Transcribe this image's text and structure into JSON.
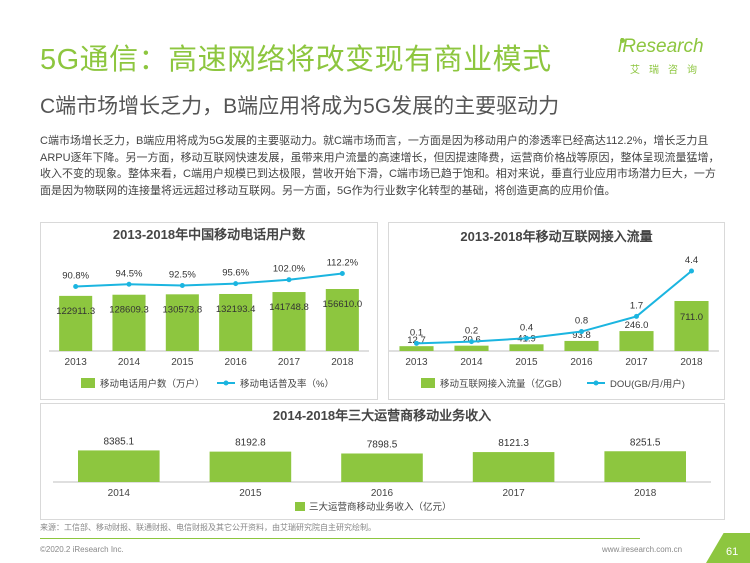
{
  "header": {
    "title": "5G通信：高速网络将改变现有商业模式",
    "subtitle": "C端市场增长乏力，B端应用将成为5G发展的主要驱动力"
  },
  "logo": {
    "word": "iResearch",
    "cn": "艾瑞咨询"
  },
  "body_text": "C端市场增长乏力，B端应用将成为5G发展的主要驱动力。就C端市场而言，一方面是因为移动用户的渗透率已经高达112.2%，增长乏力且ARPU逐年下降。另一方面，移动互联网快速发展，虽带来用户流量的高速增长，但因提速降费，运营商价格战等原因，整体呈现流量猛增，收入不变的现象。整体来看，C端用户规模已到达极限，营收开始下滑，C端市场已趋于饱和。相对来说，垂直行业应用市场潜力巨大，一方面是因为物联网的连接量将远远超过移动互联网。另一方面，5G作为行业数字化转型的基础，将创造更高的应用价值。",
  "colors": {
    "green": "#8dc63f",
    "blue": "#1bb5e0",
    "gray_text": "#555555"
  },
  "chart_data": [
    {
      "type": "bar",
      "title": "2013-2018年中国移动电话用户数",
      "categories": [
        "2013",
        "2014",
        "2015",
        "2016",
        "2017",
        "2018"
      ],
      "series": [
        {
          "name": "移动电话用户数（万户）",
          "type": "bar",
          "values": [
            122911.3,
            128609.3,
            130573.8,
            132193.4,
            141748.8,
            156610.0
          ],
          "labels": [
            "122911.3",
            "128609.3",
            "130573.8",
            "132193.4",
            "141748.8",
            "156610.0"
          ]
        },
        {
          "name": "移动电话普及率（%）",
          "type": "line",
          "values": [
            90.8,
            94.5,
            92.5,
            95.6,
            102.0,
            112.2
          ],
          "labels": [
            "90.8%",
            "94.5%",
            "92.5%",
            "95.6%",
            "102.0%",
            "112.2%"
          ]
        }
      ]
    },
    {
      "type": "bar",
      "title": "2013-2018年移动互联网接入流量",
      "categories": [
        "2013",
        "2014",
        "2015",
        "2016",
        "2017",
        "2018"
      ],
      "series": [
        {
          "name": "移动互联网接入流量（亿GB）",
          "type": "bar",
          "values": [
            12.7,
            20.6,
            41.9,
            93.8,
            246.0,
            711.0
          ],
          "labels": [
            "12.7",
            "20.6",
            "41.9",
            "93.8",
            "246.0",
            "711.0"
          ]
        },
        {
          "name": "DOU(GB/月/用户)",
          "type": "line",
          "values": [
            0.1,
            0.2,
            0.4,
            0.8,
            1.7,
            4.4
          ],
          "labels": [
            "0.1",
            "0.2",
            "0.4",
            "0.8",
            "1.7",
            "4.4"
          ]
        }
      ]
    },
    {
      "type": "bar",
      "title": "2014-2018年三大运营商移动业务收入",
      "categories": [
        "2014",
        "2015",
        "2016",
        "2017",
        "2018"
      ],
      "series": [
        {
          "name": "三大运营商移动业务收入（亿元）",
          "type": "bar",
          "values": [
            8385.1,
            8192.8,
            7898.5,
            8121.3,
            8251.5
          ],
          "labels": [
            "8385.1",
            "8192.8",
            "7898.5",
            "8121.3",
            "8251.5"
          ]
        }
      ]
    }
  ],
  "footer": {
    "source": "来源：工信部、移动财报、联通财报、电信财报及其它公开资料，由艾瑞研究院自主研究绘制。",
    "copyright": "©2020.2 iResearch Inc.",
    "website": "www.iresearch.com.cn",
    "page_number": "61"
  }
}
